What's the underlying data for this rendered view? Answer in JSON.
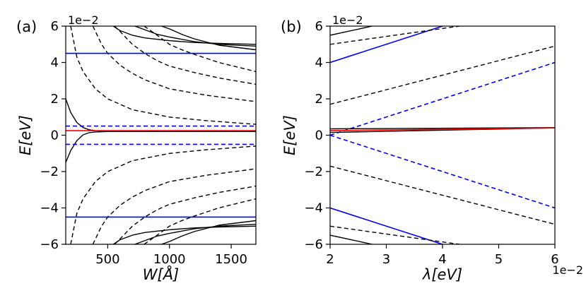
{
  "chart_data": [
    {
      "type": "line",
      "panel_label": "(a)",
      "xlabel": "W[Å]",
      "ylabel": "E[eV]",
      "y_offset_text": "1e−2",
      "xlim": [
        160,
        1700
      ],
      "ylim": [
        -6,
        6
      ],
      "xticks": [
        500,
        1000,
        1500
      ],
      "yticks": [
        -6,
        -4,
        -2,
        0,
        2,
        4,
        6
      ],
      "xtick_labels": [
        "500",
        "1000",
        "1500"
      ],
      "ytick_labels": [
        "−6",
        "−4",
        "−2",
        "0",
        "2",
        "4",
        "6"
      ],
      "grid": false,
      "legend": "none",
      "colors": {
        "black": "#000000",
        "blue": "#0000ee",
        "red": "#ff0000"
      },
      "series": [
        {
          "color": "black",
          "dash": "solid",
          "x": [
            160,
            200,
            250,
            300,
            350,
            400,
            500,
            700,
            1000,
            1700
          ],
          "y": [
            2.0,
            1.25,
            0.7,
            0.42,
            0.3,
            0.25,
            0.22,
            0.21,
            0.2,
            0.2
          ]
        },
        {
          "color": "black",
          "dash": "solid",
          "x": [
            160,
            200,
            250,
            300,
            350,
            400,
            500,
            700,
            1000,
            1700
          ],
          "y": [
            -1.5,
            -0.85,
            -0.3,
            0.02,
            0.14,
            0.18,
            0.2,
            0.2,
            0.2,
            0.2
          ]
        },
        {
          "color": "black",
          "dash": "solid",
          "x": [
            545,
            600,
            700,
            800,
            1000,
            1200,
            1400,
            1700
          ],
          "y": [
            6.0,
            5.75,
            5.5,
            5.35,
            5.2,
            5.1,
            5.05,
            5.0
          ]
        },
        {
          "color": "black",
          "dash": "solid",
          "x": [
            720,
            800,
            900,
            1000,
            1200,
            1400,
            1700
          ],
          "y": [
            6.0,
            5.8,
            5.55,
            5.4,
            5.15,
            5.0,
            4.9
          ]
        },
        {
          "color": "black",
          "dash": "solid",
          "x": [
            935,
            1000,
            1100,
            1200,
            1400,
            1700
          ],
          "y": [
            6.0,
            5.85,
            5.55,
            5.3,
            4.95,
            4.7
          ]
        },
        {
          "color": "black",
          "dash": "dashed",
          "x": [
            200,
            250,
            300,
            400,
            500,
            700,
            1000,
            1300,
            1700
          ],
          "y": [
            6.0,
            4.3,
            3.5,
            2.55,
            2.0,
            1.4,
            1.0,
            0.8,
            0.6
          ]
        },
        {
          "color": "black",
          "dash": "dashed",
          "x": [
            380,
            450,
            500,
            600,
            700,
            800,
            1000,
            1300,
            1700
          ],
          "y": [
            6.0,
            5.0,
            4.5,
            3.85,
            3.4,
            3.05,
            2.55,
            2.2,
            1.85
          ]
        },
        {
          "color": "black",
          "dash": "dashed",
          "x": [
            555,
            600,
            700,
            800,
            900,
            1000,
            1200,
            1400,
            1700
          ],
          "y": [
            6.0,
            5.7,
            5.0,
            4.5,
            4.1,
            3.8,
            3.45,
            3.15,
            2.8
          ]
        },
        {
          "color": "black",
          "dash": "dashed",
          "x": [
            795,
            900,
            1000,
            1100,
            1200,
            1400,
            1700
          ],
          "y": [
            6.0,
            5.5,
            5.0,
            4.7,
            4.45,
            4.0,
            3.5
          ]
        },
        {
          "color": "black",
          "dash": "solid",
          "x": [
            545,
            600,
            700,
            800,
            1000,
            1200,
            1400,
            1700
          ],
          "y": [
            -6.0,
            -5.75,
            -5.5,
            -5.35,
            -5.2,
            -5.1,
            -5.05,
            -5.0
          ]
        },
        {
          "color": "black",
          "dash": "solid",
          "x": [
            720,
            800,
            900,
            1000,
            1200,
            1400,
            1700
          ],
          "y": [
            -6.0,
            -5.8,
            -5.55,
            -5.4,
            -5.15,
            -5.0,
            -4.9
          ]
        },
        {
          "color": "black",
          "dash": "solid",
          "x": [
            935,
            1000,
            1100,
            1200,
            1400,
            1700
          ],
          "y": [
            -6.0,
            -5.85,
            -5.55,
            -5.3,
            -4.95,
            -4.7
          ]
        },
        {
          "color": "black",
          "dash": "dashed",
          "x": [
            200,
            250,
            300,
            400,
            500,
            700,
            1000,
            1300,
            1700
          ],
          "y": [
            -6.0,
            -4.3,
            -3.5,
            -2.55,
            -2.0,
            -1.4,
            -1.0,
            -0.8,
            -0.6
          ]
        },
        {
          "color": "black",
          "dash": "dashed",
          "x": [
            380,
            450,
            500,
            600,
            700,
            800,
            1000,
            1300,
            1700
          ],
          "y": [
            -6.0,
            -5.0,
            -4.5,
            -3.85,
            -3.4,
            -3.05,
            -2.55,
            -2.2,
            -1.85
          ]
        },
        {
          "color": "black",
          "dash": "dashed",
          "x": [
            555,
            600,
            700,
            800,
            900,
            1000,
            1200,
            1400,
            1700
          ],
          "y": [
            -6.0,
            -5.7,
            -5.0,
            -4.5,
            -4.1,
            -3.8,
            -3.45,
            -3.15,
            -2.8
          ]
        },
        {
          "color": "black",
          "dash": "dashed",
          "x": [
            795,
            900,
            1000,
            1100,
            1200,
            1400,
            1700
          ],
          "y": [
            -6.0,
            -5.5,
            -5.0,
            -4.7,
            -4.45,
            -4.0,
            -3.5
          ]
        },
        {
          "color": "blue",
          "dash": "solid",
          "x": [
            160,
            1700
          ],
          "y": [
            4.5,
            4.5
          ]
        },
        {
          "color": "blue",
          "dash": "solid",
          "x": [
            160,
            1700
          ],
          "y": [
            -4.5,
            -4.5
          ]
        },
        {
          "color": "blue",
          "dash": "dashed",
          "x": [
            160,
            1700
          ],
          "y": [
            0.5,
            0.5
          ]
        },
        {
          "color": "blue",
          "dash": "dashed",
          "x": [
            160,
            1700
          ],
          "y": [
            -0.5,
            -0.5
          ]
        },
        {
          "color": "red",
          "dash": "solid",
          "x": [
            160,
            1700
          ],
          "y": [
            0.25,
            0.25
          ]
        }
      ]
    },
    {
      "type": "line",
      "panel_label": "(b)",
      "xlabel": "λ[eV]",
      "ylabel": "E[eV]",
      "x_offset_text": "1e−2",
      "y_offset_text": "1e−2",
      "xlim": [
        2,
        6
      ],
      "ylim": [
        -6,
        6
      ],
      "xticks": [
        2,
        3,
        4,
        5,
        6
      ],
      "yticks": [
        -6,
        -4,
        -2,
        0,
        2,
        4,
        6
      ],
      "xtick_labels": [
        "2",
        "3",
        "4",
        "5",
        "6"
      ],
      "ytick_labels": [
        "−6",
        "−4",
        "−2",
        "0",
        "2",
        "4",
        "6"
      ],
      "grid": false,
      "legend": "none",
      "colors": {
        "black": "#000000",
        "blue": "#0000ee",
        "red": "#ff0000"
      },
      "series": [
        {
          "color": "blue",
          "dash": "solid",
          "x": [
            2,
            4
          ],
          "y": [
            4.0,
            6.0
          ]
        },
        {
          "color": "blue",
          "dash": "solid",
          "x": [
            2,
            4
          ],
          "y": [
            -4.0,
            -6.0
          ]
        },
        {
          "color": "blue",
          "dash": "dashed",
          "x": [
            2,
            6
          ],
          "y": [
            0.0,
            4.0
          ]
        },
        {
          "color": "blue",
          "dash": "dashed",
          "x": [
            2,
            6
          ],
          "y": [
            0.0,
            -4.0
          ]
        },
        {
          "color": "black",
          "dash": "solid",
          "x": [
            2,
            2.75
          ],
          "y": [
            5.5,
            6.0
          ]
        },
        {
          "color": "black",
          "dash": "solid",
          "x": [
            2,
            2.75
          ],
          "y": [
            -5.5,
            -6.0
          ]
        },
        {
          "color": "black",
          "dash": "dashed",
          "x": [
            2,
            4.3
          ],
          "y": [
            5.0,
            6.0
          ]
        },
        {
          "color": "black",
          "dash": "dashed",
          "x": [
            2,
            4.3
          ],
          "y": [
            -5.0,
            -6.0
          ]
        },
        {
          "color": "black",
          "dash": "dashed",
          "x": [
            2,
            6
          ],
          "y": [
            1.7,
            4.9
          ]
        },
        {
          "color": "black",
          "dash": "dashed",
          "x": [
            2,
            6
          ],
          "y": [
            -1.7,
            -4.9
          ]
        },
        {
          "color": "black",
          "dash": "solid",
          "x": [
            2,
            6
          ],
          "y": [
            0.35,
            0.42
          ]
        },
        {
          "color": "black",
          "dash": "solid",
          "x": [
            2,
            6
          ],
          "y": [
            0.15,
            0.4
          ]
        },
        {
          "color": "red",
          "dash": "solid",
          "x": [
            2,
            6
          ],
          "y": [
            0.25,
            0.4
          ]
        }
      ]
    }
  ]
}
